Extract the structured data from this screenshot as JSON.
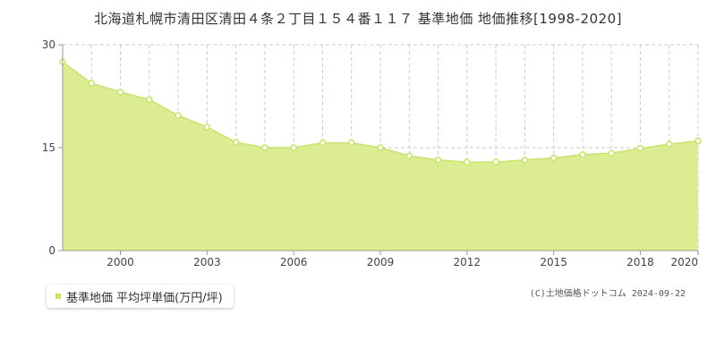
{
  "colors": {
    "line": "#c6e46c",
    "fill": "#dcec92",
    "marker_fill": "#ffffff",
    "grid": "#cccccc",
    "axis": "#999999"
  },
  "legend": {
    "label": "基準地価 平均坪単価(万円/坪)",
    "marker": "square"
  },
  "copyright": "(C)土地価格ドットコム 2024-09-22",
  "chart_data": {
    "type": "area",
    "title": "北海道札幌市清田区清田４条２丁目１５４番１１７ 基準地価 地価推移[1998-2020]",
    "xlabel": "",
    "ylabel": "",
    "x": [
      1998,
      1999,
      2000,
      2001,
      2002,
      2003,
      2004,
      2005,
      2006,
      2007,
      2008,
      2009,
      2010,
      2011,
      2012,
      2013,
      2014,
      2015,
      2016,
      2017,
      2018,
      2019,
      2020
    ],
    "series": [
      {
        "name": "基準地価 平均坪単価(万円/坪)",
        "values": [
          27.5,
          24.4,
          23.1,
          22.0,
          19.7,
          18.0,
          15.8,
          15.0,
          15.0,
          15.7,
          15.7,
          15.0,
          13.8,
          13.2,
          12.9,
          12.9,
          13.2,
          13.5,
          14.0,
          14.2,
          14.9,
          15.5,
          16.0
        ]
      }
    ],
    "xlim": [
      1998,
      2020
    ],
    "ylim": [
      0,
      30
    ],
    "yticks": [
      0,
      15,
      30
    ],
    "xticks": [
      2000,
      2003,
      2006,
      2009,
      2012,
      2015,
      2018,
      2020
    ],
    "grid": true,
    "legend_position": "bottom-left"
  }
}
